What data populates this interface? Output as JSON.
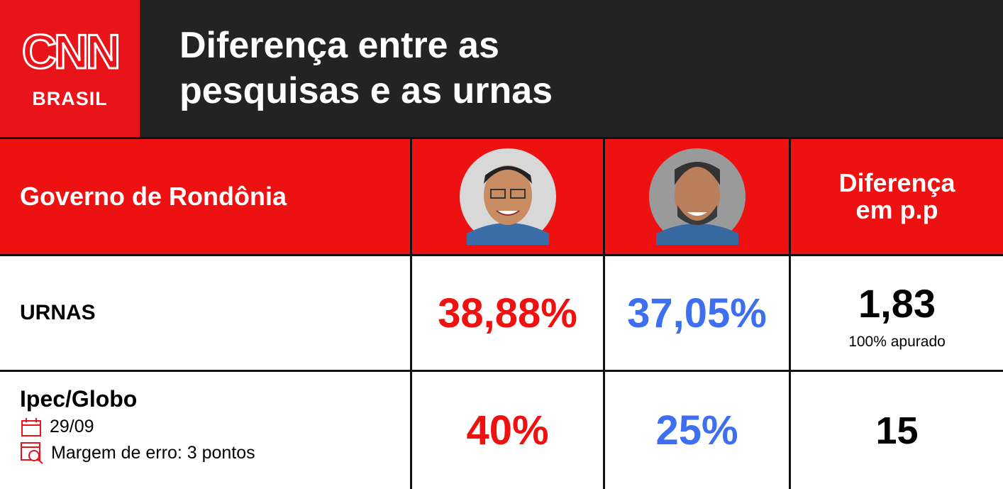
{
  "logo": {
    "brand": "CNN",
    "subtitle": "BRASIL"
  },
  "header": {
    "title_lines": [
      "Diferença entre as",
      "pesquisas e as urnas"
    ]
  },
  "table": {
    "corner": "Governo de Rondônia",
    "diff_header_lines": [
      "Diferença",
      "em p.p"
    ],
    "rows": [
      {
        "label": "URNAS",
        "candidate_1": "38,88%",
        "candidate_2": "37,05%",
        "diff": "1,83",
        "note": "100% apurado"
      },
      {
        "label": "Ipec/Globo",
        "date": "29/09",
        "margin": "Margem de erro: 3 pontos",
        "candidate_1": "40%",
        "candidate_2": "25%",
        "diff": "15"
      }
    ]
  }
}
